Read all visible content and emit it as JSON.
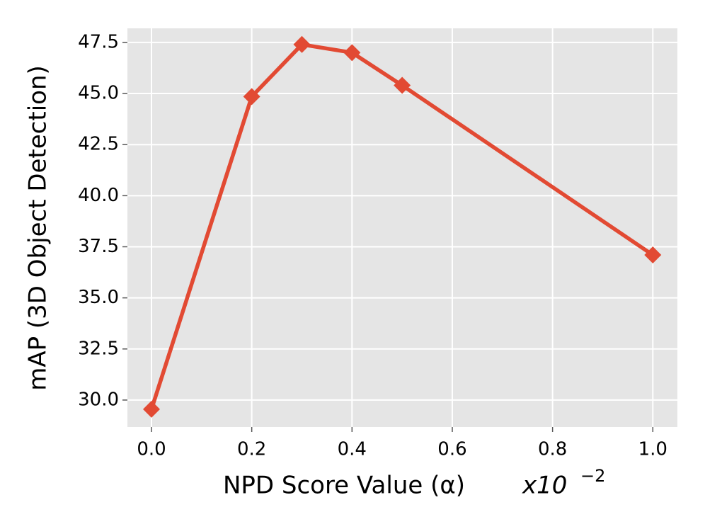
{
  "chart_data": {
    "type": "line",
    "x_label": "NPD Score Value (α)",
    "x_scale_label": {
      "base": "x10",
      "exponent": "−2"
    },
    "y_label": "mAP (3D Object Detection)",
    "series": [
      {
        "name": "mAP",
        "color": "#e24a33",
        "marker": "diamond",
        "x": [
          0,
          0.2,
          0.3,
          0.4,
          0.5,
          1.0
        ],
        "values": [
          29.55,
          44.85,
          47.4,
          47.0,
          45.4,
          37.1
        ]
      }
    ],
    "xlim": [
      -0.048,
      1.049
    ],
    "ylim": [
      28.68,
      48.19
    ],
    "xticks": [
      {
        "value": 0,
        "label": "0.0"
      },
      0.2,
      0.4,
      0.6,
      0.8,
      {
        "value": 1,
        "label": "1.0"
      }
    ],
    "yticks": [
      {
        "value": 30,
        "label": "30.0"
      },
      32.5,
      {
        "value": 35,
        "label": "35.0"
      },
      37.5,
      {
        "value": 40,
        "label": "40.0"
      },
      42.5,
      {
        "value": 45,
        "label": "45.0"
      },
      47.5
    ],
    "grid": true,
    "background": "#e5e5e5"
  }
}
